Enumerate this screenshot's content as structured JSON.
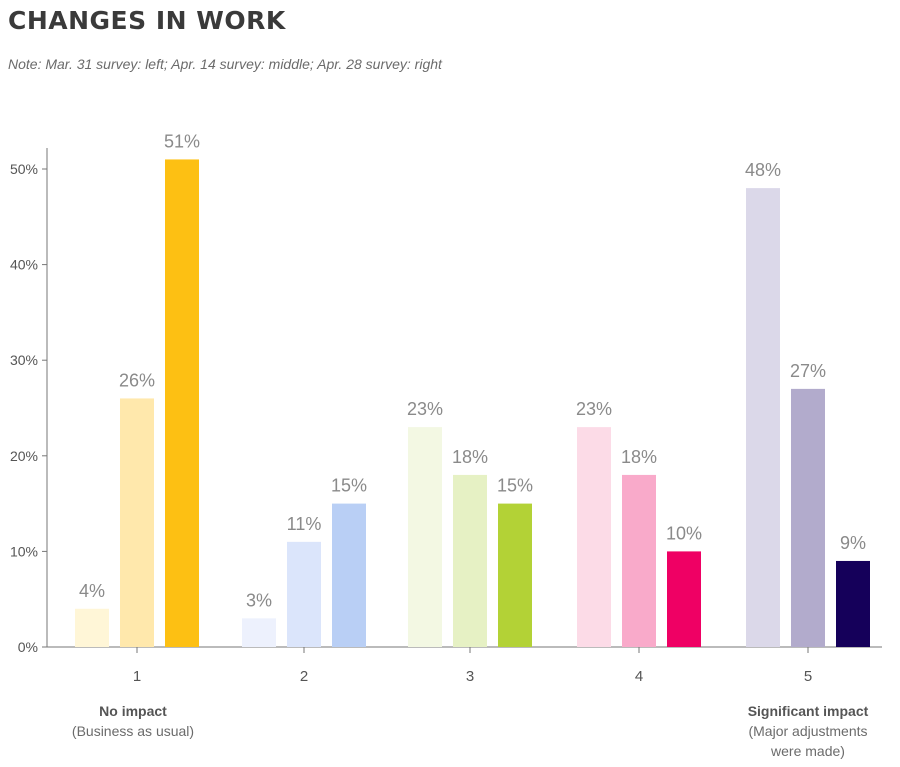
{
  "header": {
    "title": "CHANGES IN WORK",
    "note": "Note: Mar. 31 survey: left; Apr. 14 survey: middle; Apr. 28 survey: right"
  },
  "annotations": {
    "left": {
      "title": "No impact",
      "lines": [
        "(Business as usual)"
      ]
    },
    "right": {
      "title": "Significant impact",
      "lines": [
        "(Major adjustments",
        "were made)"
      ]
    }
  },
  "chart_data": {
    "type": "bar",
    "title": "CHANGES IN WORK",
    "categories": [
      "1",
      "2",
      "3",
      "4",
      "5"
    ],
    "series": [
      {
        "values": [
          4,
          3,
          23,
          23,
          48
        ]
      },
      {
        "values": [
          26,
          11,
          18,
          18,
          27
        ]
      },
      {
        "values": [
          51,
          15,
          15,
          10,
          9
        ]
      }
    ],
    "value_labels": [
      [
        "4%",
        "26%",
        "51%"
      ],
      [
        "3%",
        "11%",
        "15%"
      ],
      [
        "23%",
        "18%",
        "15%"
      ],
      [
        "23%",
        "18%",
        "10%"
      ],
      [
        "48%",
        "27%",
        "9%"
      ]
    ],
    "colors": [
      [
        "#fff6d7",
        "#ffe8ac",
        "#fdc013"
      ],
      [
        "#edf1fd",
        "#dbe5fb",
        "#b9cff5"
      ],
      [
        "#f3f8e3",
        "#e6f1c4",
        "#b3d236"
      ],
      [
        "#fcdbe7",
        "#f9aaca",
        "#ef0064"
      ],
      [
        "#dbd8e9",
        "#b2abcc",
        "#15005a"
      ]
    ],
    "ylim": [
      0,
      50
    ],
    "yticks": [
      "0%",
      "10%",
      "20%",
      "30%",
      "40%",
      "50%"
    ],
    "grid": false,
    "legend": "none"
  }
}
